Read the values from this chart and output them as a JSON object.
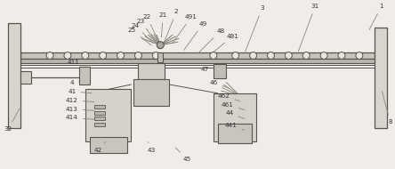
{
  "bg_color": "#f0ede8",
  "line_color": "#888880",
  "dark_line": "#555550",
  "label_color": "#333333",
  "figsize": [
    4.44,
    1.9
  ],
  "dpi": 100
}
